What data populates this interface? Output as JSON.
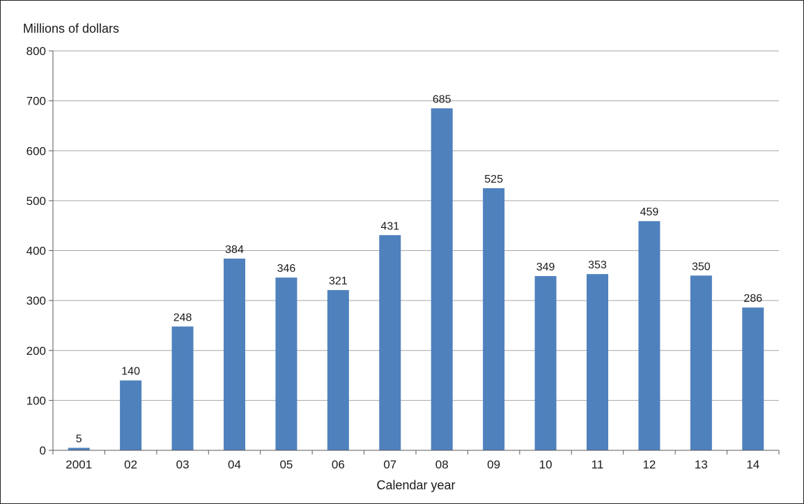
{
  "chart_data": {
    "type": "bar",
    "title": "",
    "ylabel": "Millions of dollars",
    "xlabel": "Calendar year",
    "categories": [
      "2001",
      "02",
      "03",
      "04",
      "05",
      "06",
      "07",
      "08",
      "09",
      "10",
      "11",
      "12",
      "13",
      "14"
    ],
    "values": [
      5,
      140,
      248,
      384,
      346,
      321,
      431,
      685,
      525,
      349,
      353,
      459,
      350,
      286
    ],
    "ylim": [
      0,
      800
    ],
    "yticks": [
      0,
      100,
      200,
      300,
      400,
      500,
      600,
      700,
      800
    ],
    "grid": true,
    "legend": "none",
    "data_labels": true,
    "colors": {
      "bar": "#4f81bd",
      "grid": "#a6a6a6",
      "axis": "#595959",
      "text": "#1a1a1a",
      "frame": "#222222"
    }
  }
}
